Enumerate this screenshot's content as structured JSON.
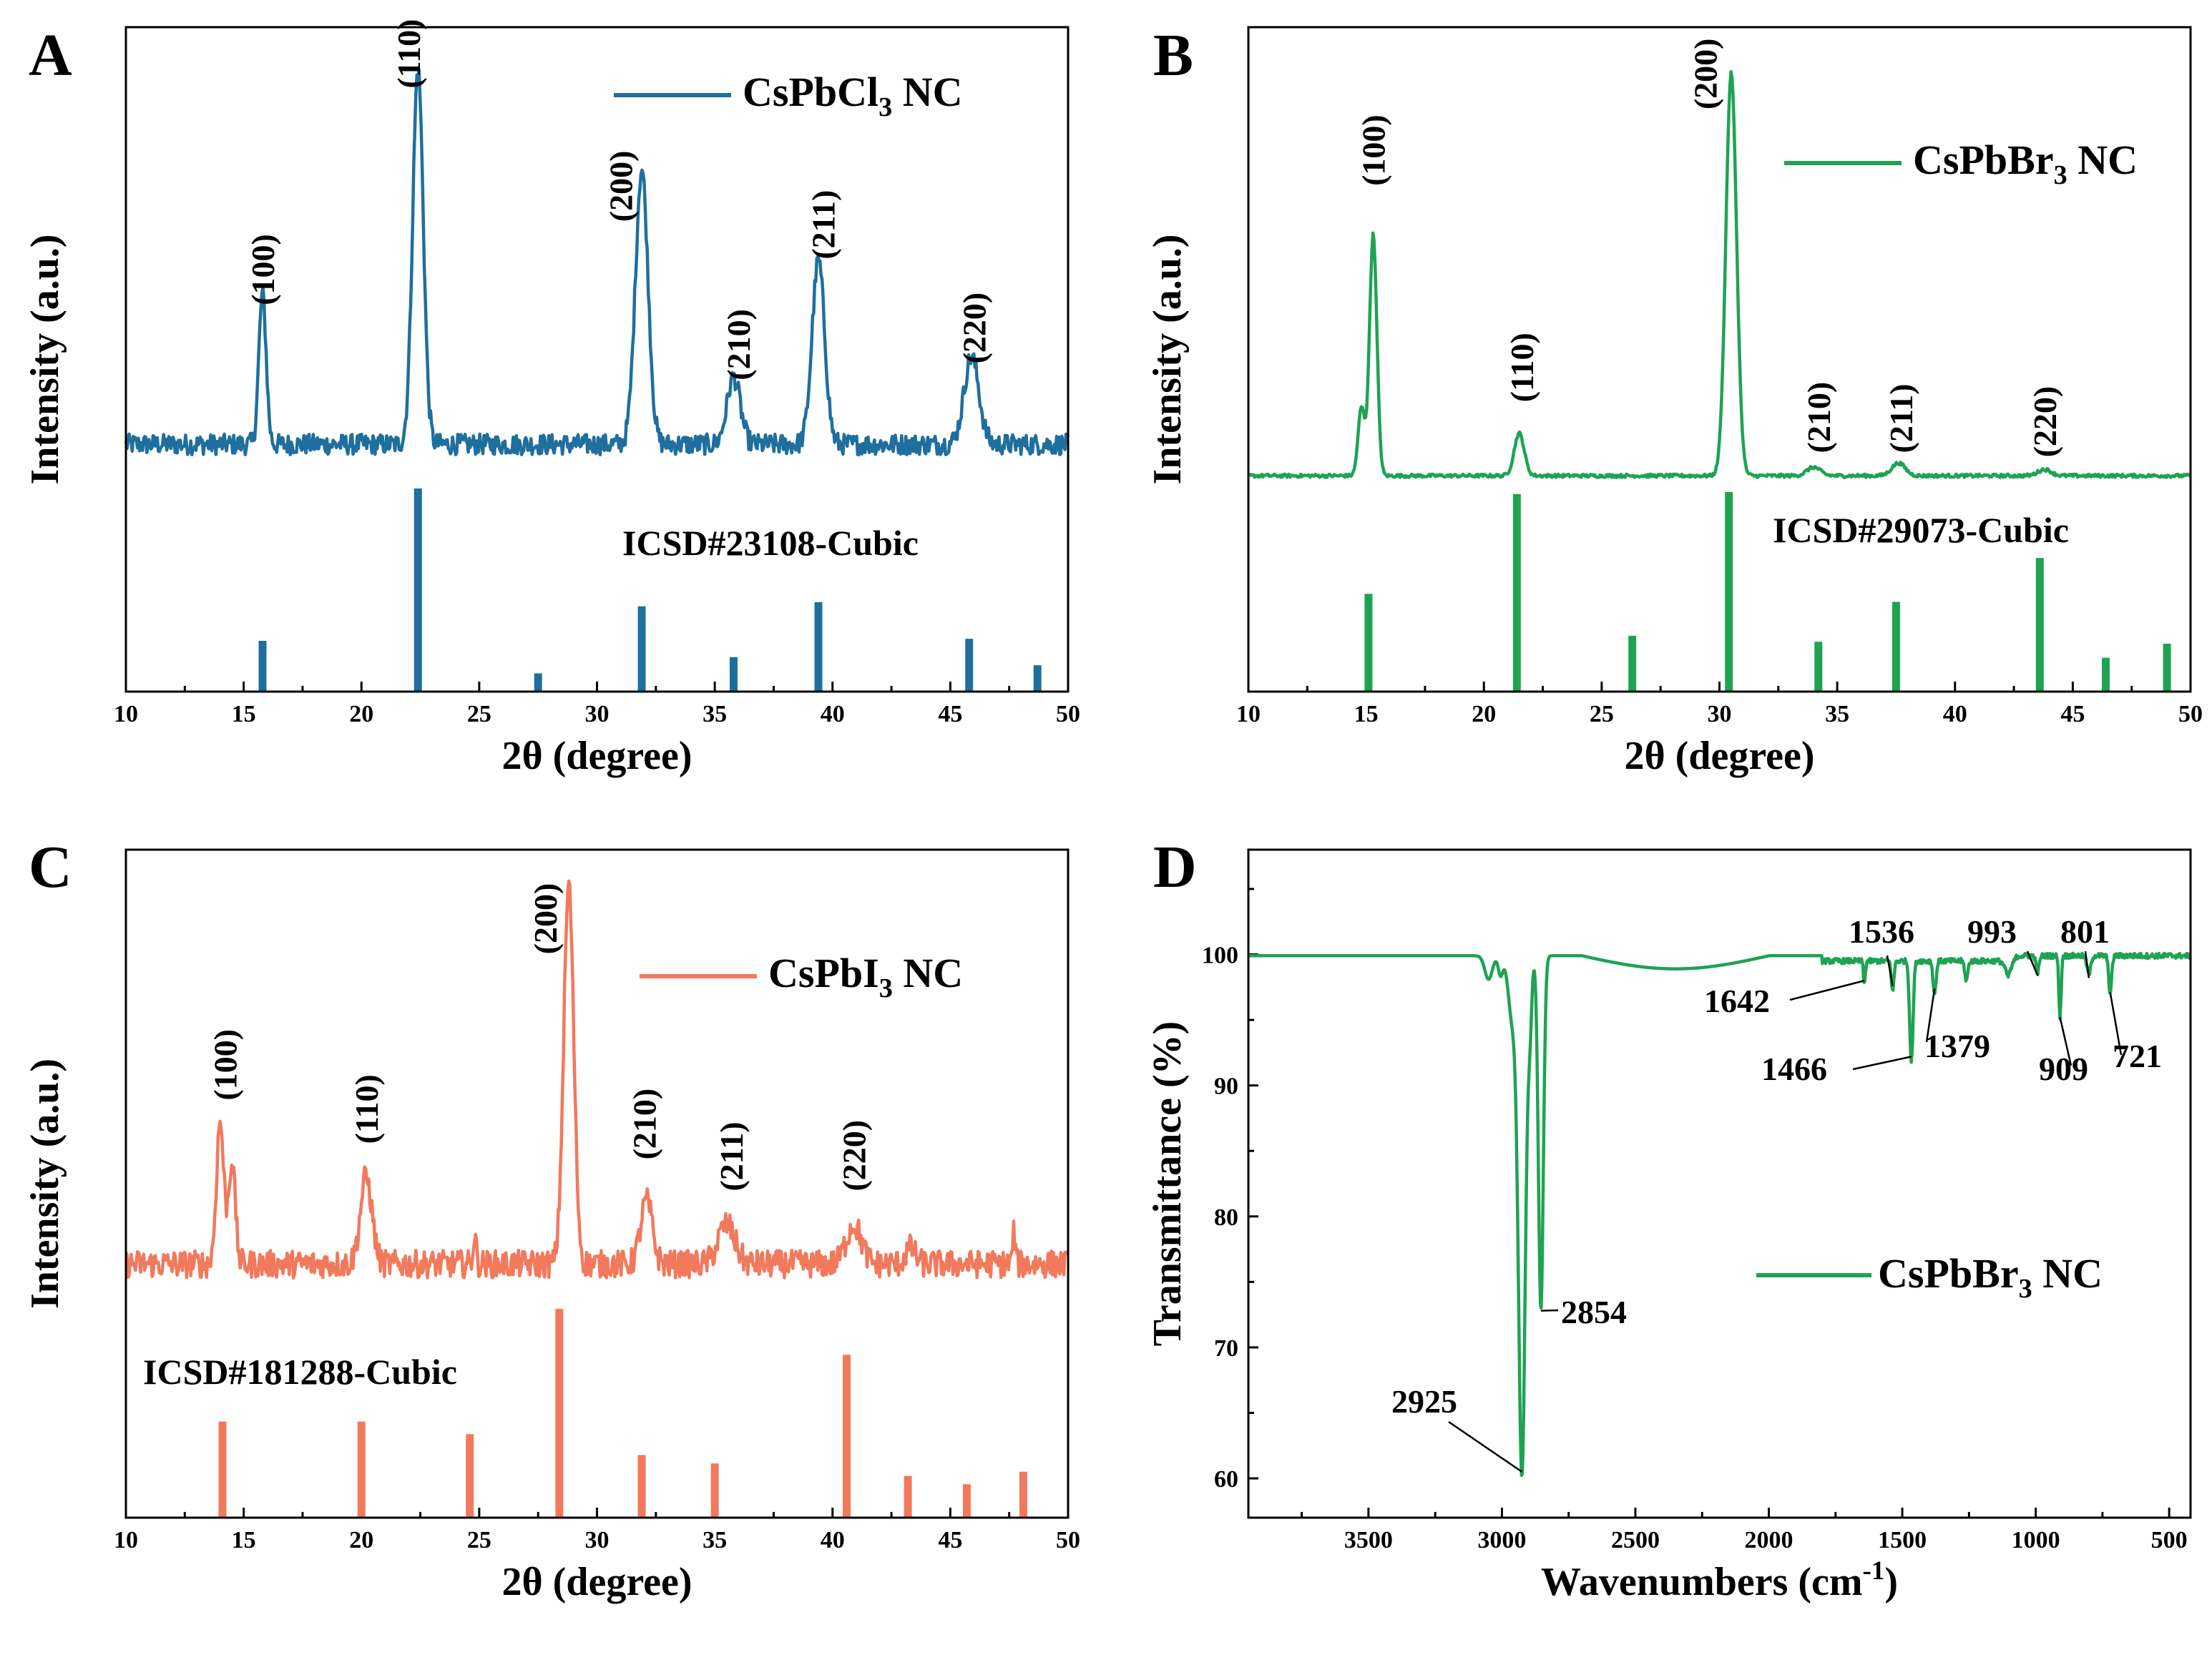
{
  "chart_data": [
    {
      "id": "A",
      "panel_label": "A",
      "type": "line",
      "color": "#1f6f9e",
      "xlabel": "2θ (degree)",
      "ylabel": "Intensity (a.u.)",
      "xlim": [
        10,
        50
      ],
      "xticks": [
        "10",
        "15",
        "20",
        "25",
        "30",
        "35",
        "40",
        "45",
        "50"
      ],
      "legend": {
        "prefix": "CsPbCl",
        "sub": "3",
        "suffix": " NC"
      },
      "reference_label": "ICSD#23108-Cubic",
      "baseline": 0.08,
      "peaks": [
        {
          "pos": 15.8,
          "height": 0.36,
          "width": 0.22
        },
        {
          "pos": 22.4,
          "height": 0.9,
          "width": 0.32
        },
        {
          "pos": 31.9,
          "height": 0.66,
          "width": 0.38
        },
        {
          "pos": 35.8,
          "height": 0.16,
          "width": 0.4
        },
        {
          "pos": 39.4,
          "height": 0.44,
          "width": 0.38
        },
        {
          "pos": 45.9,
          "height": 0.21,
          "width": 0.45
        }
      ],
      "noise": 0.025,
      "miller_labels": [
        {
          "text": "(100)",
          "x": 15.8,
          "h": 0.4
        },
        {
          "text": "(110)",
          "x": 22.0,
          "h": 0.92
        },
        {
          "text": "(200)",
          "x": 31.0,
          "h": 0.6
        },
        {
          "text": "(210)",
          "x": 36.0,
          "h": 0.22
        },
        {
          "text": "(211)",
          "x": 39.6,
          "h": 0.51
        },
        {
          "text": "(220)",
          "x": 46.0,
          "h": 0.26
        }
      ],
      "reference_peaks": [
        {
          "x": 15.8,
          "h": 0.25
        },
        {
          "x": 22.4,
          "h": 1.0
        },
        {
          "x": 27.5,
          "h": 0.09
        },
        {
          "x": 31.9,
          "h": 0.42
        },
        {
          "x": 35.8,
          "h": 0.17
        },
        {
          "x": 39.4,
          "h": 0.44
        },
        {
          "x": 45.8,
          "h": 0.26
        },
        {
          "x": 48.7,
          "h": 0.13
        }
      ]
    },
    {
      "id": "B",
      "panel_label": "B",
      "type": "line",
      "color": "#1fa352",
      "xlabel": "2θ (degree)",
      "ylabel": "Intensity (a.u.)",
      "xlim": [
        10,
        50
      ],
      "xticks": [
        "10",
        "15",
        "20",
        "25",
        "30",
        "35",
        "40",
        "45",
        "50"
      ],
      "legend": {
        "prefix": "CsPbBr",
        "sub": "3",
        "suffix": " NC"
      },
      "reference_label": "ICSD#29073-Cubic",
      "baseline": 0.03,
      "peaks": [
        {
          "pos": 15.3,
          "height": 0.57,
          "width": 0.22
        },
        {
          "pos": 14.8,
          "height": 0.16,
          "width": 0.2
        },
        {
          "pos": 21.5,
          "height": 0.1,
          "width": 0.3
        },
        {
          "pos": 30.5,
          "height": 0.95,
          "width": 0.32
        },
        {
          "pos": 34.0,
          "height": 0.02,
          "width": 0.4
        },
        {
          "pos": 37.6,
          "height": 0.03,
          "width": 0.4
        },
        {
          "pos": 43.8,
          "height": 0.015,
          "width": 0.4
        }
      ],
      "noise": 0.004,
      "miller_labels": [
        {
          "text": "(100)",
          "x": 15.3,
          "h": 0.7
        },
        {
          "text": "(110)",
          "x": 21.6,
          "h": 0.19
        },
        {
          "text": "(200)",
          "x": 29.4,
          "h": 0.88
        },
        {
          "text": "(210)",
          "x": 34.2,
          "h": 0.07
        },
        {
          "text": "(211)",
          "x": 37.7,
          "h": 0.07
        },
        {
          "text": "(220)",
          "x": 43.8,
          "h": 0.06
        }
      ],
      "reference_peaks": [
        {
          "x": 15.1,
          "h": 0.49
        },
        {
          "x": 21.4,
          "h": 0.99
        },
        {
          "x": 26.3,
          "h": 0.28
        },
        {
          "x": 30.4,
          "h": 1.0
        },
        {
          "x": 34.2,
          "h": 0.25
        },
        {
          "x": 37.5,
          "h": 0.45
        },
        {
          "x": 43.6,
          "h": 0.67
        },
        {
          "x": 46.4,
          "h": 0.17
        },
        {
          "x": 49.0,
          "h": 0.24
        }
      ]
    },
    {
      "id": "C",
      "panel_label": "C",
      "type": "line",
      "color": "#f2795c",
      "xlabel": "2θ (degree)",
      "ylabel": "Intensity (a.u.)",
      "xlim": [
        10,
        50
      ],
      "xticks": [
        "10",
        "15",
        "20",
        "25",
        "30",
        "35",
        "40",
        "45",
        "50"
      ],
      "legend": {
        "prefix": "CsPbI",
        "sub": "3",
        "suffix": " NC"
      },
      "reference_label": "ICSD#181288-Cubic",
      "baseline": 0.05,
      "peaks": [
        {
          "pos": 14.0,
          "height": 0.36,
          "width": 0.22
        },
        {
          "pos": 14.5,
          "height": 0.26,
          "width": 0.2
        },
        {
          "pos": 20.2,
          "height": 0.22,
          "width": 0.35
        },
        {
          "pos": 28.8,
          "height": 0.96,
          "width": 0.3
        },
        {
          "pos": 32.1,
          "height": 0.16,
          "width": 0.35
        },
        {
          "pos": 35.5,
          "height": 0.1,
          "width": 0.5
        },
        {
          "pos": 40.9,
          "height": 0.1,
          "width": 0.45
        },
        {
          "pos": 43.3,
          "height": 0.04,
          "width": 0.3
        },
        {
          "pos": 24.8,
          "height": 0.07,
          "width": 0.1
        },
        {
          "pos": 47.7,
          "height": 0.08,
          "width": 0.08
        }
      ],
      "noise": 0.035,
      "miller_labels": [
        {
          "text": "(100)",
          "x": 14.2,
          "h": 0.45
        },
        {
          "text": "(110)",
          "x": 20.2,
          "h": 0.34
        },
        {
          "text": "(200)",
          "x": 27.8,
          "h": 0.82
        },
        {
          "text": "(210)",
          "x": 32.0,
          "h": 0.3
        },
        {
          "text": "(211)",
          "x": 35.7,
          "h": 0.22
        },
        {
          "text": "(220)",
          "x": 40.9,
          "h": 0.22
        }
      ],
      "reference_peaks": [
        {
          "x": 14.1,
          "h": 0.46
        },
        {
          "x": 20.0,
          "h": 0.46
        },
        {
          "x": 24.6,
          "h": 0.4
        },
        {
          "x": 28.4,
          "h": 1.0
        },
        {
          "x": 31.9,
          "h": 0.3
        },
        {
          "x": 35.0,
          "h": 0.26
        },
        {
          "x": 40.6,
          "h": 0.78
        },
        {
          "x": 43.2,
          "h": 0.2
        },
        {
          "x": 45.7,
          "h": 0.16
        },
        {
          "x": 48.1,
          "h": 0.22
        }
      ]
    },
    {
      "id": "D",
      "panel_label": "D",
      "type": "line",
      "color": "#1fa352",
      "xlabel_prefix": "Wavenumbers (cm",
      "xlabel_sup": "-1",
      "xlabel_suffix": ")",
      "ylabel": "Transmittance (%)",
      "xlim": [
        3950,
        420
      ],
      "ylim": [
        57,
        108
      ],
      "xticks": [
        3500,
        3000,
        2500,
        2000,
        1500,
        1000,
        500
      ],
      "yticks": [
        60,
        70,
        80,
        90,
        100
      ],
      "legend": {
        "prefix": "CsPbBr",
        "sub": "3",
        "suffix": " NC"
      },
      "baseline": 99.9,
      "bands": [
        {
          "pos": 2925,
          "depth": 39.4,
          "width": 18
        },
        {
          "pos": 2854,
          "depth": 27.0,
          "width": 13
        },
        {
          "pos": 2960,
          "depth": 5.0,
          "width": 22
        },
        {
          "pos": 3050,
          "depth": 1.8,
          "width": 20
        },
        {
          "pos": 3005,
          "depth": 1.5,
          "width": 12
        },
        {
          "pos": 2895,
          "depth": 5.0,
          "width": 10
        },
        {
          "pos": 1642,
          "depth": 1.8,
          "width": 5
        },
        {
          "pos": 1536,
          "depth": 2.3,
          "width": 7
        },
        {
          "pos": 1466,
          "depth": 7.7,
          "width": 9
        },
        {
          "pos": 1379,
          "depth": 2.5,
          "width": 8
        },
        {
          "pos": 1260,
          "depth": 1.5,
          "width": 8
        },
        {
          "pos": 1100,
          "depth": 1.2,
          "width": 18
        },
        {
          "pos": 993,
          "depth": 1.3,
          "width": 8
        },
        {
          "pos": 909,
          "depth": 4.7,
          "width": 6
        },
        {
          "pos": 801,
          "depth": 1.4,
          "width": 10
        },
        {
          "pos": 721,
          "depth": 2.8,
          "width": 8
        }
      ],
      "annotations": [
        {
          "text": "2925",
          "x": 2925,
          "y": 60.5
        },
        {
          "text": "2854",
          "x": 2854,
          "y": 72.8
        },
        {
          "text": "1642",
          "x": 1642,
          "y": 98.0
        },
        {
          "text": "1536",
          "x": 1536,
          "y": 97.6
        },
        {
          "text": "1466",
          "x": 1466,
          "y": 92.2
        },
        {
          "text": "1379",
          "x": 1379,
          "y": 97.4
        },
        {
          "text": "993",
          "x": 993,
          "y": 98.4
        },
        {
          "text": "909",
          "x": 909,
          "y": 95.2
        },
        {
          "text": "801",
          "x": 801,
          "y": 98.2
        },
        {
          "text": "721",
          "x": 721,
          "y": 97.1
        }
      ]
    }
  ]
}
